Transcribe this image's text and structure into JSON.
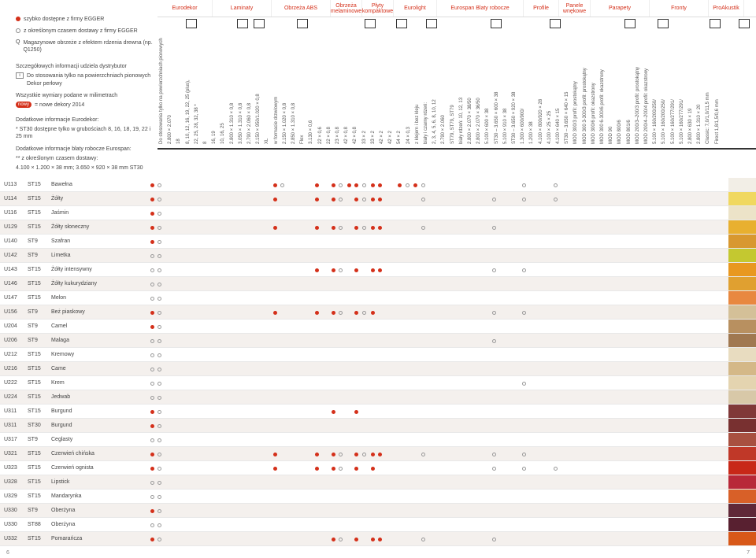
{
  "legend": {
    "l1": "szybko dostępne z firmy EGGER",
    "l2": "z określonym czasem dostawy z firmy EGGER",
    "l3": "Magazynowe obrzeże z efektem rdzenia drewna (np. Q1250)",
    "l4": "Szczegółowych informacji udziela dystrybutor",
    "l5": "Do stosowania tylko na powierzchniach pionowych Dekor perłowy",
    "l6": "Wszystkie wymiary podane w milimetrach",
    "l7": "= nowe dekory 2014",
    "l8": "Dodatkowe informacje Eurodekor:",
    "l9": "* ST30 dostępne tylko w grubościach 8, 16, 18, 19, 22 i 25 mm",
    "l10": "Dodatkowe informacje blaty robocze Eurospan:",
    "l11": "** z określonym czasem dostawy:",
    "l12": "4.100 × 1.200 × 38 mm; 3.650 × 920 × 38 mm ST30",
    "q": "Q",
    "i": "i"
  },
  "headers": [
    {
      "label": "Eurodekor",
      "w": 70
    },
    {
      "label": "Laminaty",
      "w": 75
    },
    {
      "label": "Obrzeża ABS",
      "w": 75
    },
    {
      "label": "Obrzeża melaminowe",
      "w": 40
    },
    {
      "label": "Płyty kompaktowe",
      "w": 40
    },
    {
      "label": "Eurolight",
      "w": 55
    },
    {
      "label": "Eurospan Blaty robocze",
      "w": 110
    },
    {
      "label": "Profile",
      "w": 45
    },
    {
      "label": "Panele wnękowe",
      "w": 40
    },
    {
      "label": "Parapety",
      "w": 75
    },
    {
      "label": "Fronty",
      "w": 75
    },
    {
      "label": "ProAkustik",
      "w": 45
    }
  ],
  "subcols": [
    "Do stosowania tylko na powierzchniach pionowych",
    "2.800 × 2.070",
    "18",
    "8, 10, 12, 16, 19, 22, 25 (plus),",
    "22, 25, 28, 32, 38 *",
    "8",
    "16, 19",
    "10, 16, 25",
    "2.800 × 1.310 × 0,8",
    "3.050 × 1.310 × 0,8",
    "2.790 × 2.060 × 0,8",
    "2.150 × 950/1.020 × 0,8",
    "XL",
    "w formacie drzwiowym",
    "2.150 × 1.020 × 0,8",
    "2.850 × 1.310 × 0,8",
    "Flex",
    "3.130 × 0,6",
    "22 × 0,6",
    "22 × 0,8",
    "23 × 0,8",
    "42 × 0,8",
    "42 × 0,8",
    "33 × 2",
    "33 × 2",
    "42 × 2",
    "42 × 2",
    "54 × 2",
    "24 × 0,3",
    "z klejem i bez kleju",
    "biały i czarny rdzeń:",
    "2, 3, 4, 5, 6, 8, 10, 12",
    "2.790 × 2.060",
    "ST79, ST79, ST79",
    "biały rdzeń: 10, 12, 13",
    "2.800 × 2.070 × 38/50",
    "2.800 × 2.070 × 36/50",
    "5.100 × 600 × 38",
    "ST30 – 3.650 × 600 × 38",
    "5.100 × 910 × 38",
    "ST30 – 3.650 × 920 × 38",
    "1.300 × 600/900/",
    "1.200 × 38",
    "4.100 × 800/920 × 28",
    "4.100 × 25 × 25",
    "4.100 × 640 × 15",
    "ST30 – 3.650 × 640 × 15",
    "MOD 300/3 profil: prostokątny",
    "MOD 300 3-300/3 profil: prostokątny",
    "MOD 300/6 profil: okazstrony",
    "MOD 300 6-300/6 profil: okazstrony",
    "MOD 90",
    "MOD 800/6",
    "MOD 801/6",
    "MOD 200/3–200/3 profil: prostokątny",
    "MOD 200/4–200/4 profil: okazstrony",
    "5.100 × 160/200/250/",
    "5.100 × 160/200/250/",
    "5.100 × 160/277/291/",
    "5.100 × 160/277/291/",
    "2.800 × 630 × 19",
    "2.800 × 1.310 × 20",
    "Classic: 7,0/1,0/11,5 mm",
    "Firect 1,8/1,5/0,6 mm"
  ],
  "rows": [
    {
      "c": "U113",
      "f": "ST15",
      "n": "Bawełna",
      "sh": 0,
      "sw": "#f2eee6",
      "d": [
        [
          26,
          1
        ],
        [
          35,
          0
        ],
        [
          182,
          1
        ],
        [
          191,
          0
        ],
        [
          235,
          1
        ],
        [
          256,
          1
        ],
        [
          265,
          0
        ],
        [
          276,
          1
        ],
        [
          285,
          1
        ],
        [
          295,
          0
        ],
        [
          306,
          1
        ],
        [
          315,
          1
        ],
        [
          340,
          1
        ],
        [
          350,
          0
        ],
        [
          360,
          1
        ],
        [
          370,
          0
        ],
        [
          498,
          0
        ],
        [
          538,
          0
        ]
      ]
    },
    {
      "c": "U114",
      "f": "ST15",
      "n": "Żółty",
      "sh": 1,
      "sw": "#f0d860",
      "d": [
        [
          26,
          1
        ],
        [
          35,
          0
        ],
        [
          182,
          1
        ],
        [
          235,
          1
        ],
        [
          256,
          1
        ],
        [
          265,
          0
        ],
        [
          285,
          1
        ],
        [
          295,
          0
        ],
        [
          306,
          1
        ],
        [
          315,
          1
        ],
        [
          370,
          0
        ],
        [
          460,
          0
        ],
        [
          498,
          0
        ],
        [
          538,
          0
        ]
      ]
    },
    {
      "c": "U116",
      "f": "ST15",
      "n": "Jaśmin",
      "sh": 0,
      "sw": "#ece3c8",
      "d": [
        [
          26,
          1
        ],
        [
          35,
          0
        ]
      ]
    },
    {
      "c": "U129",
      "f": "ST15",
      "n": "Żółty słoneczny",
      "sh": 1,
      "sw": "#e8b030",
      "d": [
        [
          26,
          1
        ],
        [
          35,
          0
        ],
        [
          182,
          1
        ],
        [
          235,
          1
        ],
        [
          256,
          1
        ],
        [
          265,
          0
        ],
        [
          285,
          1
        ],
        [
          295,
          0
        ],
        [
          306,
          1
        ],
        [
          315,
          1
        ],
        [
          370,
          0
        ],
        [
          460,
          0
        ]
      ]
    },
    {
      "c": "U140",
      "f": "ST9",
      "n": "Szafran",
      "sh": 0,
      "sw": "#d89830",
      "d": [
        [
          26,
          1
        ],
        [
          35,
          0
        ]
      ]
    },
    {
      "c": "U142",
      "f": "ST9",
      "n": "Limetka",
      "sh": 1,
      "sw": "#c4c830",
      "d": [
        [
          26,
          0
        ],
        [
          35,
          0
        ]
      ]
    },
    {
      "c": "U143",
      "f": "ST15",
      "n": "Żółty intensywny",
      "sh": 0,
      "sw": "#e89820",
      "d": [
        [
          26,
          0
        ],
        [
          35,
          0
        ],
        [
          235,
          1
        ],
        [
          256,
          1
        ],
        [
          265,
          0
        ],
        [
          285,
          1
        ],
        [
          306,
          1
        ],
        [
          315,
          1
        ],
        [
          460,
          0
        ],
        [
          498,
          0
        ]
      ]
    },
    {
      "c": "U146",
      "f": "ST15",
      "n": "Żółty kukurydziany",
      "sh": 1,
      "sw": "#e0a030",
      "d": [
        [
          26,
          0
        ],
        [
          35,
          0
        ]
      ]
    },
    {
      "c": "U147",
      "f": "ST15",
      "n": "Melon",
      "sh": 0,
      "sw": "#e88840",
      "d": [
        [
          26,
          0
        ],
        [
          35,
          0
        ]
      ]
    },
    {
      "c": "U156",
      "f": "ST9",
      "n": "Beż piaskowy",
      "sh": 1,
      "sw": "#d4c098",
      "d": [
        [
          26,
          1
        ],
        [
          35,
          0
        ],
        [
          182,
          1
        ],
        [
          235,
          1
        ],
        [
          256,
          1
        ],
        [
          265,
          0
        ],
        [
          285,
          1
        ],
        [
          295,
          0
        ],
        [
          306,
          1
        ],
        [
          460,
          0
        ],
        [
          498,
          0
        ]
      ]
    },
    {
      "c": "U204",
      "f": "ST9",
      "n": "Camel",
      "sh": 0,
      "sw": "#b89060",
      "d": [
        [
          26,
          1
        ],
        [
          35,
          0
        ]
      ]
    },
    {
      "c": "U206",
      "f": "ST9",
      "n": "Malaga",
      "sh": 1,
      "sw": "#a07850",
      "d": [
        [
          26,
          0
        ],
        [
          35,
          0
        ],
        [
          460,
          0
        ]
      ]
    },
    {
      "c": "U212",
      "f": "ST15",
      "n": "Kremowy",
      "sh": 0,
      "sw": "#e8dcc0",
      "d": [
        [
          26,
          0
        ],
        [
          35,
          0
        ]
      ]
    },
    {
      "c": "U216",
      "f": "ST15",
      "n": "Came",
      "sh": 1,
      "sw": "#d4b888",
      "d": [
        [
          26,
          0
        ],
        [
          35,
          0
        ]
      ]
    },
    {
      "c": "U222",
      "f": "ST15",
      "n": "Krem",
      "sh": 0,
      "sw": "#e4d4b0",
      "d": [
        [
          26,
          0
        ],
        [
          35,
          0
        ],
        [
          498,
          0
        ]
      ]
    },
    {
      "c": "U224",
      "f": "ST15",
      "n": "Jedwab",
      "sh": 1,
      "sw": "#d8c8a8",
      "d": [
        [
          26,
          0
        ],
        [
          35,
          0
        ]
      ]
    },
    {
      "c": "U311",
      "f": "ST15",
      "n": "Burgund",
      "sh": 0,
      "sw": "#803838",
      "d": [
        [
          26,
          1
        ],
        [
          35,
          0
        ],
        [
          256,
          1
        ],
        [
          285,
          1
        ]
      ]
    },
    {
      "c": "U311",
      "f": "ST30",
      "n": "Burgund",
      "sh": 1,
      "sw": "#783030",
      "d": [
        [
          26,
          1
        ],
        [
          35,
          0
        ]
      ]
    },
    {
      "c": "U317",
      "f": "ST9",
      "n": "Ceglasty",
      "sh": 0,
      "sw": "#a85040",
      "d": [
        [
          26,
          0
        ],
        [
          35,
          0
        ]
      ]
    },
    {
      "c": "U321",
      "f": "ST15",
      "n": "Czerwień chińska",
      "sh": 1,
      "sw": "#c03828",
      "d": [
        [
          26,
          1
        ],
        [
          35,
          0
        ],
        [
          182,
          1
        ],
        [
          235,
          1
        ],
        [
          256,
          1
        ],
        [
          265,
          0
        ],
        [
          285,
          1
        ],
        [
          295,
          0
        ],
        [
          306,
          1
        ],
        [
          315,
          1
        ],
        [
          370,
          0
        ],
        [
          460,
          0
        ],
        [
          498,
          0
        ]
      ]
    },
    {
      "c": "U323",
      "f": "ST15",
      "n": "Czerwień ognista",
      "sh": 0,
      "sw": "#c82818",
      "d": [
        [
          26,
          1
        ],
        [
          35,
          0
        ],
        [
          182,
          1
        ],
        [
          235,
          1
        ],
        [
          256,
          1
        ],
        [
          265,
          0
        ],
        [
          285,
          1
        ],
        [
          306,
          1
        ],
        [
          460,
          0
        ],
        [
          498,
          0
        ],
        [
          538,
          0
        ]
      ]
    },
    {
      "c": "U328",
      "f": "ST15",
      "n": "Lipstick",
      "sh": 1,
      "sw": "#b82838",
      "d": [
        [
          26,
          0
        ],
        [
          35,
          0
        ]
      ]
    },
    {
      "c": "U329",
      "f": "ST15",
      "n": "Mandarynka",
      "sh": 0,
      "sw": "#d86028",
      "d": [
        [
          26,
          0
        ],
        [
          35,
          0
        ]
      ]
    },
    {
      "c": "U330",
      "f": "ST9",
      "n": "Oberżyna",
      "sh": 1,
      "sw": "#602838",
      "d": [
        [
          26,
          1
        ],
        [
          35,
          0
        ]
      ]
    },
    {
      "c": "U330",
      "f": "ST88",
      "n": "Oberżyna",
      "sh": 0,
      "sw": "#582030",
      "d": [
        [
          26,
          0
        ],
        [
          35,
          0
        ]
      ]
    },
    {
      "c": "U332",
      "f": "ST15",
      "n": "Pomarańcza",
      "sh": 1,
      "sw": "#d85818",
      "d": [
        [
          26,
          1
        ],
        [
          35,
          0
        ],
        [
          256,
          1
        ],
        [
          265,
          0
        ],
        [
          285,
          1
        ],
        [
          306,
          1
        ],
        [
          315,
          1
        ],
        [
          370,
          0
        ],
        [
          460,
          0
        ]
      ]
    }
  ],
  "page_left": "6",
  "page_right": "7"
}
